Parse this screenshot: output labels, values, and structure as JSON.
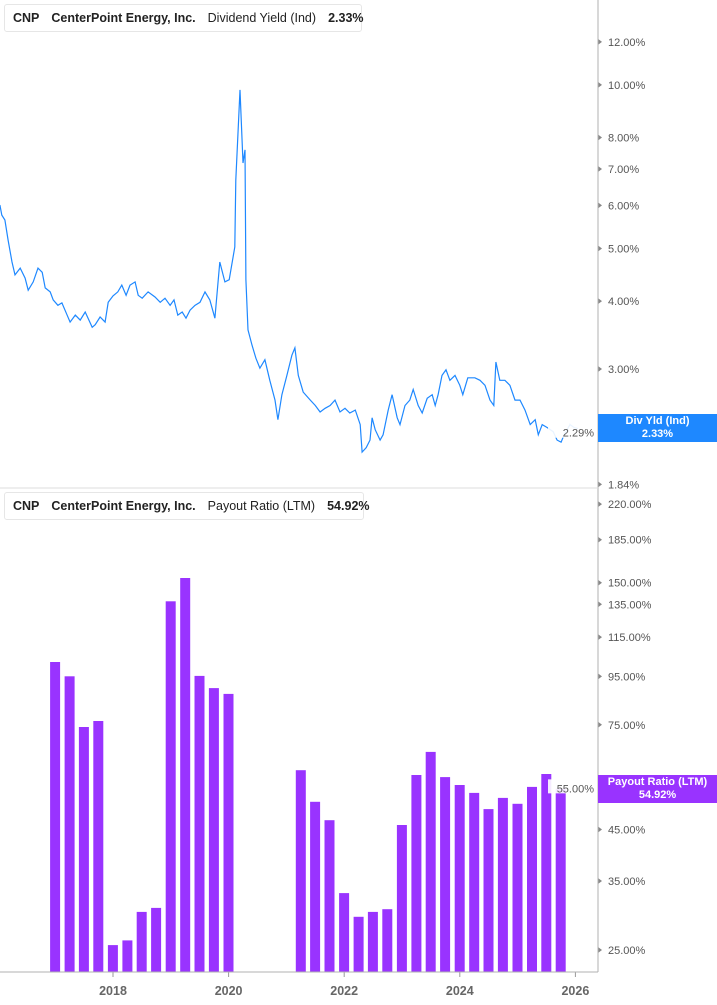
{
  "colors": {
    "yield_line": "#1e88ff",
    "payout_bar": "#9933ff",
    "axis": "#b0b0b0",
    "tick_text": "#555555"
  },
  "top_legend": {
    "ticker": "CNP",
    "company": "CenterPoint Energy, Inc.",
    "metric": "Dividend Yield (Ind)",
    "value": "2.33%"
  },
  "bottom_legend": {
    "ticker": "CNP",
    "company": "CenterPoint Energy, Inc.",
    "metric": "Payout Ratio (LTM)",
    "value": "54.92%"
  },
  "top_tag": {
    "label": "Div Yld (Ind)",
    "value": "2.33%"
  },
  "bottom_tag": {
    "label": "Payout Ratio (LTM)",
    "value": "54.92%"
  },
  "chart_data": [
    {
      "type": "line",
      "name": "Dividend Yield (Ind)",
      "yscale": "log",
      "ylim": [
        1.84,
        13.5
      ],
      "y_ticks": [
        12,
        10,
        8,
        7,
        6,
        5,
        4,
        3,
        2.29,
        1.84
      ],
      "y_tick_labels": [
        "12.00%",
        "10.00%",
        "8.00%",
        "7.00%",
        "6.00%",
        "5.00%",
        "4.00%",
        "3.00%",
        "2.29%",
        "1.84%"
      ],
      "grid": false,
      "points": [
        [
          "2016-01-17",
          6.01
        ],
        [
          "2016-01-29",
          5.76
        ],
        [
          "2016-02-18",
          5.64
        ],
        [
          "2016-03-08",
          5.18
        ],
        [
          "2016-04-02",
          4.72
        ],
        [
          "2016-04-21",
          4.47
        ],
        [
          "2016-05-23",
          4.6
        ],
        [
          "2016-06-24",
          4.41
        ],
        [
          "2016-07-13",
          4.19
        ],
        [
          "2016-08-14",
          4.34
        ],
        [
          "2016-09-14",
          4.6
        ],
        [
          "2016-10-10",
          4.52
        ],
        [
          "2016-10-29",
          4.23
        ],
        [
          "2016-11-30",
          4.16
        ],
        [
          "2016-12-19",
          4.02
        ],
        [
          "2017-01-18",
          3.93
        ],
        [
          "2017-02-13",
          3.97
        ],
        [
          "2017-03-10",
          3.8
        ],
        [
          "2017-04-04",
          3.66
        ],
        [
          "2017-05-06",
          3.77
        ],
        [
          "2017-06-07",
          3.69
        ],
        [
          "2017-07-08",
          3.82
        ],
        [
          "2017-08-22",
          3.58
        ],
        [
          "2017-09-10",
          3.62
        ],
        [
          "2017-10-11",
          3.74
        ],
        [
          "2017-11-12",
          3.66
        ],
        [
          "2017-12-01",
          3.98
        ],
        [
          "2018-01-01",
          4.09
        ],
        [
          "2018-02-01",
          4.16
        ],
        [
          "2018-02-26",
          4.28
        ],
        [
          "2018-03-23",
          4.1
        ],
        [
          "2018-04-17",
          4.28
        ],
        [
          "2018-05-19",
          4.34
        ],
        [
          "2018-06-08",
          4.1
        ],
        [
          "2018-07-03",
          4.05
        ],
        [
          "2018-08-10",
          4.16
        ],
        [
          "2018-09-23",
          4.07
        ],
        [
          "2018-10-25",
          3.98
        ],
        [
          "2018-11-25",
          4.05
        ],
        [
          "2018-12-27",
          3.93
        ],
        [
          "2019-01-21",
          4.02
        ],
        [
          "2019-02-15",
          3.77
        ],
        [
          "2019-03-12",
          3.82
        ],
        [
          "2019-04-06",
          3.72
        ],
        [
          "2019-05-01",
          3.85
        ],
        [
          "2019-06-02",
          3.93
        ],
        [
          "2019-07-03",
          3.98
        ],
        [
          "2019-08-04",
          4.16
        ],
        [
          "2019-09-04",
          4.02
        ],
        [
          "2019-10-06",
          3.72
        ],
        [
          "2019-11-06",
          4.72
        ],
        [
          "2019-12-08",
          4.34
        ],
        [
          "2020-01-05",
          4.38
        ],
        [
          "2020-02-10",
          5.03
        ],
        [
          "2020-02-16",
          6.68
        ],
        [
          "2020-03-12",
          9.79
        ],
        [
          "2020-03-31",
          7.18
        ],
        [
          "2020-04-13",
          7.59
        ],
        [
          "2020-04-19",
          4.38
        ],
        [
          "2020-05-02",
          3.54
        ],
        [
          "2020-05-27",
          3.32
        ],
        [
          "2020-06-21",
          3.14
        ],
        [
          "2020-07-16",
          3.01
        ],
        [
          "2020-08-17",
          3.12
        ],
        [
          "2020-09-18",
          2.86
        ],
        [
          "2020-10-20",
          2.63
        ],
        [
          "2020-11-08",
          2.42
        ],
        [
          "2020-12-03",
          2.69
        ],
        [
          "2021-01-04",
          2.92
        ],
        [
          "2021-02-05",
          3.18
        ],
        [
          "2021-02-24",
          3.28
        ],
        [
          "2021-03-15",
          2.92
        ],
        [
          "2021-04-16",
          2.72
        ],
        [
          "2021-05-30",
          2.63
        ],
        [
          "2021-07-01",
          2.57
        ],
        [
          "2021-08-01",
          2.5
        ],
        [
          "2021-09-02",
          2.54
        ],
        [
          "2021-10-03",
          2.57
        ],
        [
          "2021-11-04",
          2.63
        ],
        [
          "2021-12-05",
          2.5
        ],
        [
          "2022-01-06",
          2.54
        ],
        [
          "2022-02-06",
          2.49
        ],
        [
          "2022-03-10",
          2.52
        ],
        [
          "2022-04-11",
          2.37
        ],
        [
          "2022-04-23",
          2.11
        ],
        [
          "2022-05-18",
          2.15
        ],
        [
          "2022-06-12",
          2.22
        ],
        [
          "2022-06-25",
          2.44
        ],
        [
          "2022-07-14",
          2.32
        ],
        [
          "2022-08-15",
          2.22
        ],
        [
          "2022-09-03",
          2.27
        ],
        [
          "2022-10-05",
          2.52
        ],
        [
          "2022-10-30",
          2.69
        ],
        [
          "2022-12-01",
          2.44
        ],
        [
          "2022-12-19",
          2.37
        ],
        [
          "2023-01-20",
          2.57
        ],
        [
          "2023-02-20",
          2.63
        ],
        [
          "2023-03-11",
          2.75
        ],
        [
          "2023-04-12",
          2.57
        ],
        [
          "2023-05-07",
          2.49
        ],
        [
          "2023-06-08",
          2.65
        ],
        [
          "2023-07-09",
          2.69
        ],
        [
          "2023-07-28",
          2.57
        ],
        [
          "2023-08-16",
          2.69
        ],
        [
          "2023-09-10",
          2.92
        ],
        [
          "2023-10-05",
          2.99
        ],
        [
          "2023-10-30",
          2.86
        ],
        [
          "2023-12-01",
          2.92
        ],
        [
          "2024-01-01",
          2.8
        ],
        [
          "2024-01-20",
          2.69
        ],
        [
          "2024-02-21",
          2.89
        ],
        [
          "2024-04-05",
          2.89
        ],
        [
          "2024-05-07",
          2.86
        ],
        [
          "2024-06-08",
          2.8
        ],
        [
          "2024-07-09",
          2.63
        ],
        [
          "2024-08-03",
          2.57
        ],
        [
          "2024-08-16",
          3.09
        ],
        [
          "2024-09-10",
          2.86
        ],
        [
          "2024-10-12",
          2.86
        ],
        [
          "2024-11-13",
          2.8
        ],
        [
          "2024-12-15",
          2.63
        ],
        [
          "2025-01-16",
          2.63
        ],
        [
          "2025-02-17",
          2.52
        ],
        [
          "2025-03-20",
          2.37
        ],
        [
          "2025-04-21",
          2.42
        ],
        [
          "2025-05-10",
          2.27
        ],
        [
          "2025-06-04",
          2.37
        ],
        [
          "2025-07-06",
          2.34
        ],
        [
          "2025-08-13",
          2.3
        ],
        [
          "2025-09-07",
          2.22
        ],
        [
          "2025-10-02",
          2.2
        ],
        [
          "2025-10-21",
          2.27
        ],
        [
          "2025-11-28",
          2.37
        ],
        [
          "2025-12-24",
          2.34
        ],
        [
          "2026-01-17",
          2.33
        ]
      ]
    },
    {
      "type": "bar",
      "name": "Payout Ratio (LTM)",
      "yscale": "log",
      "ylim": [
        22.5,
        240
      ],
      "y_ticks": [
        220,
        185,
        150,
        135,
        115,
        95,
        75,
        55,
        45,
        35,
        25
      ],
      "y_tick_labels": [
        "220.00%",
        "185.00%",
        "150.00%",
        "135.00%",
        "115.00%",
        "95.00%",
        "75.00%",
        "55.00%",
        "45.00%",
        "35.00%",
        "25.00%"
      ],
      "x_ticks": [
        "2018",
        "2020",
        "2022",
        "2024",
        "2026"
      ],
      "grid": false,
      "categories": [
        "2016-12-31",
        "2017-03-31",
        "2017-06-30",
        "2017-09-30",
        "2017-12-31",
        "2018-03-31",
        "2018-06-30",
        "2018-09-30",
        "2018-12-31",
        "2019-03-31",
        "2019-06-30",
        "2019-09-30",
        "2019-12-31",
        "2021-03-31",
        "2021-06-30",
        "2021-09-30",
        "2021-12-31",
        "2022-03-31",
        "2022-06-30",
        "2022-09-30",
        "2022-12-31",
        "2023-03-31",
        "2023-06-30",
        "2023-09-30",
        "2023-12-31",
        "2024-03-31",
        "2024-06-30",
        "2024-09-30",
        "2024-12-31",
        "2025-03-31",
        "2025-06-30",
        "2025-09-30"
      ],
      "values": [
        101.9,
        95.0,
        74.2,
        76.4,
        25.6,
        26.2,
        30.1,
        30.7,
        137.0,
        153.5,
        95.2,
        89.7,
        87.2,
        60.1,
        51.5,
        47.1,
        33.0,
        29.4,
        30.1,
        30.5,
        46.0,
        58.7,
        65.7,
        58.1,
        55.9,
        53.8,
        49.7,
        52.5,
        51.0,
        55.4,
        59.0,
        54.92
      ]
    }
  ]
}
